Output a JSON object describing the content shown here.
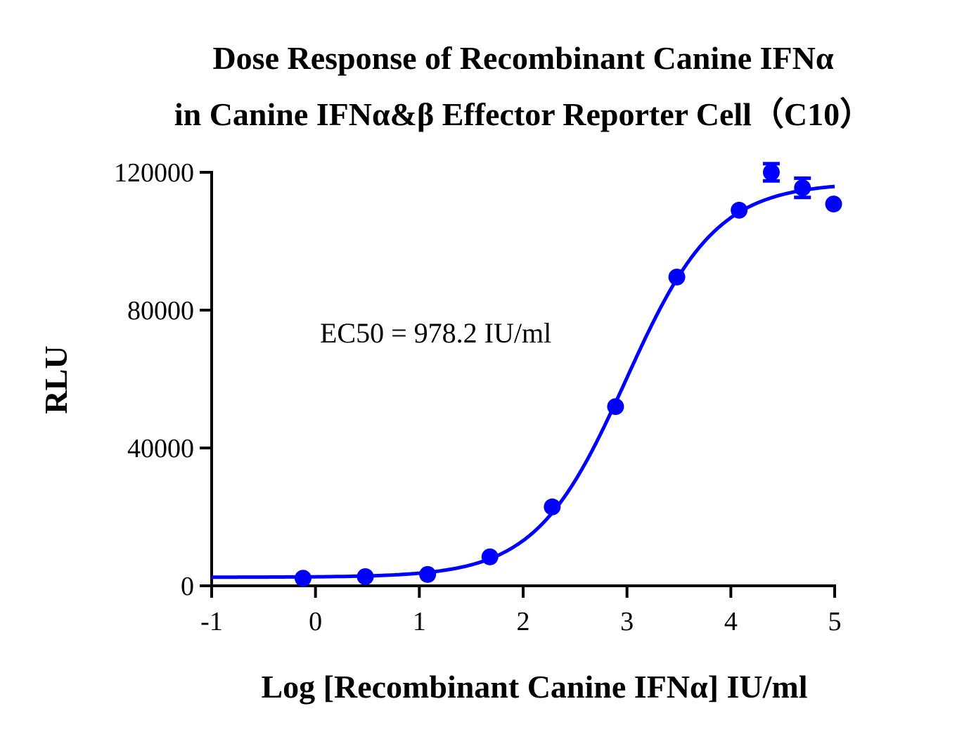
{
  "chart_data": {
    "type": "scatter",
    "title_line1": "Dose Response of Recombinant Canine IFNα",
    "title_line2": "in Canine IFNα&β Effector Reporter Cell（C10）",
    "xlabel": "Log [Recombinant Canine IFNα] IU/ml",
    "ylabel": "RLU",
    "xlim": [
      -1,
      5
    ],
    "ylim": [
      0,
      120000
    ],
    "xticks": [
      "-1",
      "0",
      "1",
      "2",
      "3",
      "4",
      "5"
    ],
    "yticks": [
      "0",
      "40000",
      "80000",
      "120000"
    ],
    "annotation": "EC50 = 978.2 IU/ml",
    "color": "#0000ff",
    "grid": false,
    "points": [
      {
        "x": -0.12,
        "y": 2200
      },
      {
        "x": 0.48,
        "y": 2650
      },
      {
        "x": 1.08,
        "y": 3300
      },
      {
        "x": 1.68,
        "y": 8400
      },
      {
        "x": 2.28,
        "y": 22900
      },
      {
        "x": 2.89,
        "y": 52000
      },
      {
        "x": 3.48,
        "y": 89600
      },
      {
        "x": 4.08,
        "y": 109000
      },
      {
        "x": 4.39,
        "y": 120000,
        "err": 2500
      },
      {
        "x": 4.69,
        "y": 115500,
        "err": 2800
      },
      {
        "x": 4.99,
        "y": 110800
      }
    ],
    "fit": {
      "model": "4PL",
      "bottom": 2500,
      "top": 117000,
      "logEC50": 2.99,
      "hill": 1.0
    }
  }
}
